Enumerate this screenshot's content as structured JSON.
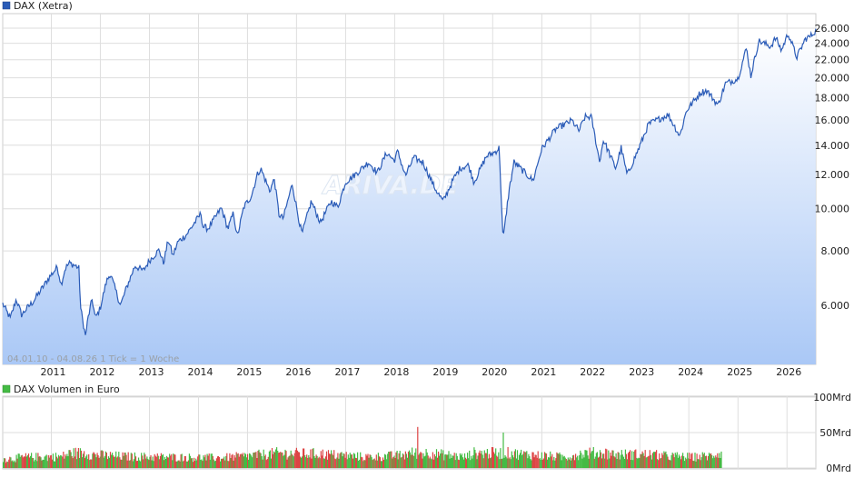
{
  "chart_data": [
    {
      "type": "area",
      "legend": "DAX (Xetra)",
      "series": [
        {
          "name": "DAX (Xetra)",
          "color": "#2a5bb7",
          "points": [
            [
              "2010-01-04",
              6050
            ],
            [
              "2010-03-01",
              5600
            ],
            [
              "2010-04-15",
              6200
            ],
            [
              "2010-05-25",
              5700
            ],
            [
              "2010-07-01",
              5900
            ],
            [
              "2010-08-15",
              6100
            ],
            [
              "2010-10-15",
              6500
            ],
            [
              "2010-12-15",
              6950
            ],
            [
              "2011-02-15",
              7350
            ],
            [
              "2011-03-15",
              6700
            ],
            [
              "2011-04-15",
              7300
            ],
            [
              "2011-05-15",
              7500
            ],
            [
              "2011-07-01",
              7400
            ],
            [
              "2011-07-25",
              7300
            ],
            [
              "2011-08-08",
              5900
            ],
            [
              "2011-09-12",
              5100
            ],
            [
              "2011-10-01",
              5600
            ],
            [
              "2011-11-01",
              6200
            ],
            [
              "2011-11-25",
              5600
            ],
            [
              "2011-12-30",
              5900
            ],
            [
              "2012-02-15",
              6800
            ],
            [
              "2012-03-15",
              7100
            ],
            [
              "2012-05-30",
              6000
            ],
            [
              "2012-07-15",
              6600
            ],
            [
              "2012-09-15",
              7400
            ],
            [
              "2012-11-15",
              7200
            ],
            [
              "2012-12-31",
              7600
            ],
            [
              "2013-03-15",
              8050
            ],
            [
              "2013-04-15",
              7500
            ],
            [
              "2013-05-22",
              8500
            ],
            [
              "2013-06-24",
              7800
            ],
            [
              "2013-08-01",
              8400
            ],
            [
              "2013-10-01",
              8700
            ],
            [
              "2013-12-30",
              9550
            ],
            [
              "2014-01-20",
              9750
            ],
            [
              "2014-02-03",
              9100
            ],
            [
              "2014-03-14",
              9000
            ],
            [
              "2014-06-20",
              10050
            ],
            [
              "2014-08-08",
              9000
            ],
            [
              "2014-09-19",
              9800
            ],
            [
              "2014-10-16",
              8600
            ],
            [
              "2014-12-05",
              10100
            ],
            [
              "2015-01-30",
              10700
            ],
            [
              "2015-03-16",
              12000
            ],
            [
              "2015-04-10",
              12370
            ],
            [
              "2015-06-15",
              11000
            ],
            [
              "2015-07-20",
              11700
            ],
            [
              "2015-08-24",
              9700
            ],
            [
              "2015-09-24",
              9500
            ],
            [
              "2015-11-30",
              11400
            ],
            [
              "2016-01-20",
              9400
            ],
            [
              "2016-02-11",
              8750
            ],
            [
              "2016-04-20",
              10400
            ],
            [
              "2016-06-27",
              9300
            ],
            [
              "2016-09-15",
              10400
            ],
            [
              "2016-11-04",
              10100
            ],
            [
              "2016-12-30",
              11500
            ],
            [
              "2017-03-15",
              12000
            ],
            [
              "2017-06-20",
              12800
            ],
            [
              "2017-08-25",
              12100
            ],
            [
              "2017-11-03",
              13450
            ],
            [
              "2017-12-29",
              12900
            ],
            [
              "2018-01-23",
              13550
            ],
            [
              "2018-03-23",
              11900
            ],
            [
              "2018-05-22",
              13100
            ],
            [
              "2018-07-30",
              12800
            ],
            [
              "2018-10-25",
              11200
            ],
            [
              "2018-12-27",
              10400
            ],
            [
              "2019-03-15",
              11700
            ],
            [
              "2019-05-03",
              12400
            ],
            [
              "2019-07-05",
              12600
            ],
            [
              "2019-08-15",
              11500
            ],
            [
              "2019-11-15",
              13200
            ],
            [
              "2020-01-17",
              13500
            ],
            [
              "2020-02-19",
              13800
            ],
            [
              "2020-03-18",
              8450
            ],
            [
              "2020-04-30",
              10900
            ],
            [
              "2020-06-08",
              12800
            ],
            [
              "2020-10-28",
              11600
            ],
            [
              "2020-12-30",
              13700
            ],
            [
              "2021-04-15",
              15250
            ],
            [
              "2021-08-13",
              15950
            ],
            [
              "2021-10-05",
              15100
            ],
            [
              "2021-11-18",
              16250
            ],
            [
              "2022-01-05",
              16250
            ],
            [
              "2022-03-07",
              12850
            ],
            [
              "2022-04-05",
              14400
            ],
            [
              "2022-07-05",
              12400
            ],
            [
              "2022-08-15",
              13800
            ],
            [
              "2022-09-29",
              11950
            ],
            [
              "2022-12-30",
              13900
            ],
            [
              "2023-03-07",
              15650
            ],
            [
              "2023-07-31",
              16450
            ],
            [
              "2023-10-26",
              14700
            ],
            [
              "2023-12-14",
              16800
            ],
            [
              "2024-03-28",
              18500
            ],
            [
              "2024-05-15",
              18700
            ],
            [
              "2024-08-05",
              17300
            ],
            [
              "2024-09-30",
              19400
            ],
            [
              "2024-12-31",
              19900
            ],
            [
              "2025-03-05",
              23400
            ],
            [
              "2025-04-07",
              20200
            ],
            [
              "2025-06-05",
              24300
            ],
            [
              "2025-09-01",
              23600
            ],
            [
              "2025-10-10",
              24700
            ],
            [
              "2025-11-21",
              23100
            ],
            [
              "2026-01-10",
              25300
            ],
            [
              "2026-03-15",
              22300
            ],
            [
              "2026-05-20",
              24600
            ],
            [
              "2026-06-25",
              24900
            ],
            [
              "2026-08-04",
              25700
            ]
          ]
        }
      ],
      "x_range": [
        "2010-01-04",
        "2026-08-04"
      ],
      "y_scale": "log",
      "ylim": [
        4500,
        27000
      ],
      "y_ticks": [
        6000,
        8000,
        10000,
        12000,
        14000,
        16000,
        18000,
        20000,
        22000,
        24000,
        26000
      ],
      "y_tick_labels": [
        "6.000",
        "8.000",
        "10.000",
        "12.000",
        "14.000",
        "16.000",
        "18.000",
        "20.000",
        "22.000",
        "24.000",
        "26.000"
      ],
      "x_tick_labels": [
        "2011",
        "2012",
        "2013",
        "2014",
        "2015",
        "2016",
        "2017",
        "2018",
        "2019",
        "2020",
        "2021",
        "2022",
        "2023",
        "2024",
        "2025",
        "2026"
      ],
      "annotation": "04.01.10 - 04.08.26   1 Tick = 1 Woche",
      "watermark": "ARIVA.DE",
      "grid": true,
      "legend_position": "top-left"
    },
    {
      "type": "bar",
      "legend": "DAX Volumen in Euro",
      "colors": {
        "up": "#44bb44",
        "down": "#dd4444"
      },
      "x_range": [
        "2010-01-04",
        "2026-08-04"
      ],
      "ylim": [
        0,
        100
      ],
      "y_unit": "Mrd",
      "y_ticks": [
        0,
        50,
        100
      ],
      "y_tick_labels": [
        "0Mrd",
        "50Mrd",
        "100Mrd"
      ],
      "volume_profile": [
        [
          "2010-01",
          13
        ],
        [
          "2010-06",
          16
        ],
        [
          "2011-03",
          17
        ],
        [
          "2011-08",
          28
        ],
        [
          "2011-10",
          20
        ],
        [
          "2012-06",
          17
        ],
        [
          "2013-06",
          16
        ],
        [
          "2014-06",
          15
        ],
        [
          "2015-01",
          18
        ],
        [
          "2015-08",
          22
        ],
        [
          "2016-02",
          21
        ],
        [
          "2016-06",
          21
        ],
        [
          "2017-06",
          16
        ],
        [
          "2018-03",
          19
        ],
        [
          "2018-06",
          60
        ],
        [
          "2018-10",
          21
        ],
        [
          "2019-06",
          16
        ],
        [
          "2020-03",
          52
        ],
        [
          "2020-06",
          21
        ],
        [
          "2021-06",
          16
        ],
        [
          "2022-03",
          27
        ],
        [
          "2022-06",
          20
        ],
        [
          "2023-03",
          20
        ],
        [
          "2023-06",
          18
        ],
        [
          "2024-01",
          16
        ],
        [
          "2024-06",
          18
        ],
        [
          "2024-08",
          25
        ]
      ],
      "volume_data_until": "2024-08-30",
      "grid": true,
      "legend_position": "top-left"
    }
  ]
}
